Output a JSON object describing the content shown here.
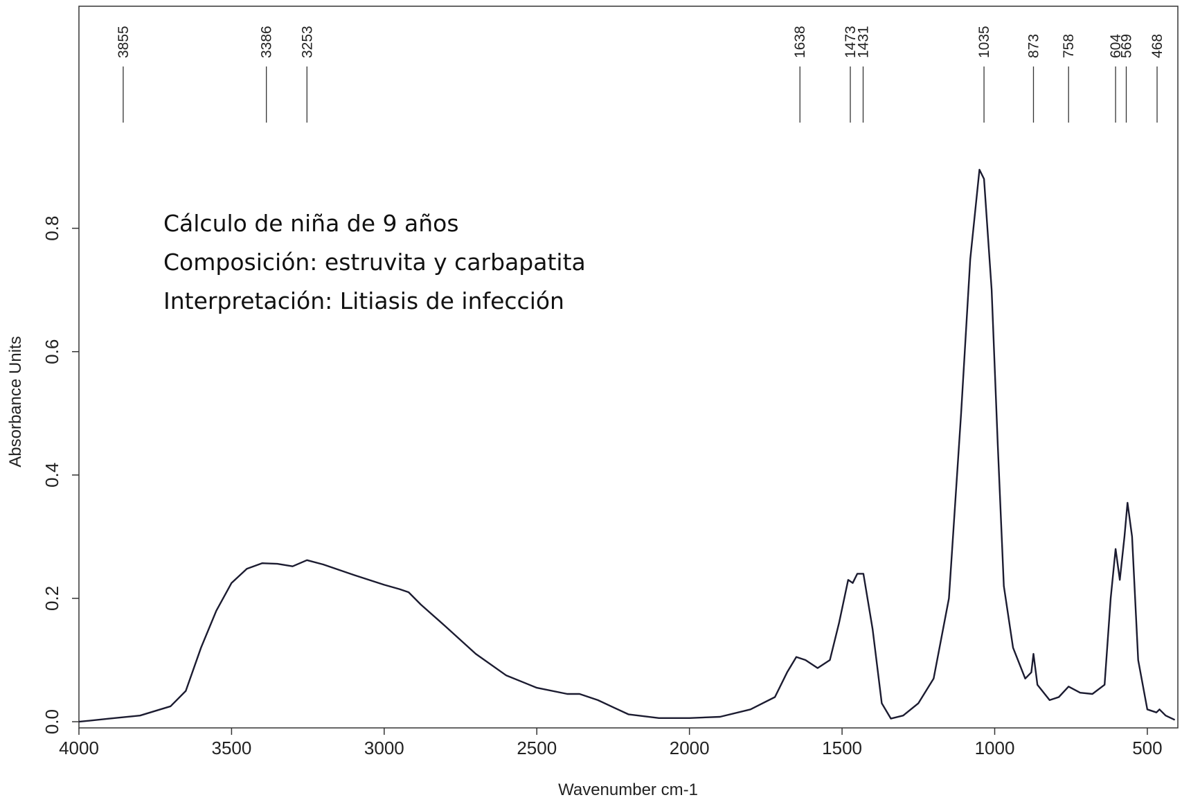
{
  "chart_data": {
    "type": "line",
    "xlabel": "Wavenumber cm-1",
    "ylabel": "Absorbance Units",
    "annotation_lines": [
      "Cálculo de niña de 9 años",
      "Composición: estruvita y carbapatita",
      "Interpretación: Litiasis de infección"
    ],
    "peaks": [
      3855,
      3386,
      3253,
      1638,
      1473,
      1431,
      1035,
      873,
      758,
      604,
      569,
      468
    ],
    "x": [
      4000,
      3900,
      3800,
      3700,
      3650,
      3600,
      3550,
      3500,
      3450,
      3400,
      3350,
      3300,
      3253,
      3200,
      3100,
      3000,
      2950,
      2920,
      2880,
      2800,
      2700,
      2600,
      2500,
      2400,
      2360,
      2300,
      2200,
      2100,
      2000,
      1900,
      1800,
      1720,
      1680,
      1650,
      1620,
      1580,
      1540,
      1510,
      1480,
      1465,
      1450,
      1430,
      1400,
      1370,
      1340,
      1300,
      1250,
      1200,
      1150,
      1110,
      1080,
      1050,
      1035,
      1010,
      990,
      970,
      940,
      900,
      880,
      873,
      860,
      820,
      790,
      758,
      720,
      680,
      640,
      620,
      604,
      590,
      575,
      565,
      550,
      530,
      500,
      470,
      460,
      440,
      410
    ],
    "series": [
      {
        "color": "#1b1b30",
        "values": [
          0.0,
          0.005,
          0.01,
          0.025,
          0.05,
          0.12,
          0.18,
          0.225,
          0.248,
          0.257,
          0.256,
          0.252,
          0.262,
          0.255,
          0.238,
          0.222,
          0.215,
          0.21,
          0.19,
          0.155,
          0.11,
          0.075,
          0.055,
          0.045,
          0.045,
          0.035,
          0.012,
          0.006,
          0.006,
          0.008,
          0.02,
          0.04,
          0.08,
          0.105,
          0.1,
          0.087,
          0.1,
          0.16,
          0.23,
          0.225,
          0.24,
          0.24,
          0.15,
          0.03,
          0.005,
          0.01,
          0.03,
          0.07,
          0.2,
          0.5,
          0.75,
          0.895,
          0.88,
          0.7,
          0.45,
          0.22,
          0.12,
          0.07,
          0.08,
          0.11,
          0.06,
          0.035,
          0.04,
          0.057,
          0.047,
          0.045,
          0.06,
          0.2,
          0.28,
          0.23,
          0.3,
          0.355,
          0.3,
          0.1,
          0.02,
          0.015,
          0.02,
          0.01,
          0.003
        ]
      }
    ],
    "xlim": [
      4000,
      400
    ],
    "ylim": [
      -0.01,
      1.16
    ],
    "xticks": [
      4000,
      3500,
      3000,
      2500,
      2000,
      1500,
      1000,
      500
    ],
    "yticks": [
      {
        "value": 0,
        "label": "0.0"
      },
      0.2,
      0.4,
      0.6,
      0.8
    ],
    "grid": false
  }
}
